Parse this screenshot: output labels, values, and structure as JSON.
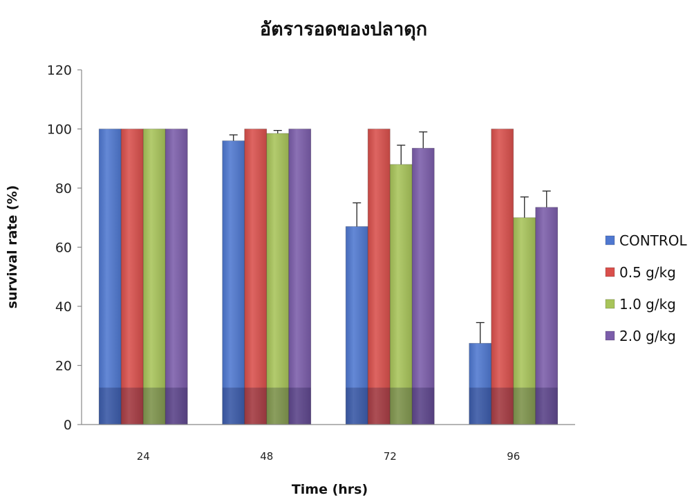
{
  "chart_data": {
    "type": "bar",
    "title": "อัตรารอดของปลาดุก",
    "xlabel": "Time (hrs)",
    "ylabel": "survival rate (%)",
    "categories": [
      "24",
      "48",
      "72",
      "96"
    ],
    "ylim": [
      0,
      120
    ],
    "yticks": [
      "0",
      "20",
      "40",
      "60",
      "80",
      "100",
      "120"
    ],
    "grid": false,
    "legend_position": "right",
    "series": [
      {
        "name": "CONTROL",
        "color": "#4F78D0",
        "values": [
          100,
          96,
          67,
          27.5
        ],
        "errors": [
          0,
          2,
          8,
          7
        ]
      },
      {
        "name": "0.5 g/kg",
        "color": "#D9504C",
        "values": [
          100,
          100,
          100,
          100
        ],
        "errors": [
          0,
          0,
          0,
          0
        ]
      },
      {
        "name": "1.0 g/kg",
        "color": "#A8C45A",
        "values": [
          100,
          98.5,
          88,
          70
        ],
        "errors": [
          0,
          1,
          6.5,
          7
        ]
      },
      {
        "name": "2.0 g/kg",
        "color": "#7B5DAA",
        "values": [
          100,
          100,
          93.5,
          73.5
        ],
        "errors": [
          0,
          0,
          5.5,
          5.5
        ]
      }
    ]
  }
}
